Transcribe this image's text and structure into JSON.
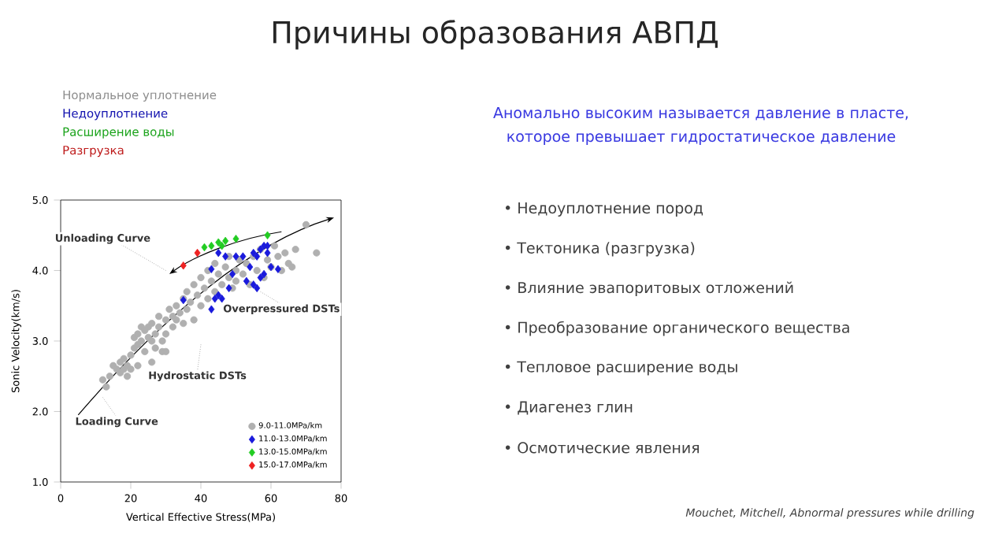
{
  "chart_data": {
    "type": "scatter",
    "title": "Причины образования АВПД",
    "xlabel": "Vertical Effective Stress(MPa)",
    "ylabel": "Sonic Velocity(km/s)",
    "xlim": [
      0,
      80
    ],
    "xticks": [
      0,
      20,
      40,
      60,
      80
    ],
    "ylim": [
      1.0,
      5.0
    ],
    "yticks": [
      {
        "value": 1.0,
        "label": "1.0"
      },
      {
        "value": 2.0,
        "label": "2.0"
      },
      {
        "value": 3.0,
        "label": "3.0"
      },
      {
        "value": 4.0,
        "label": "4.0"
      },
      {
        "value": 5.0,
        "label": "5.0"
      }
    ],
    "grid": false,
    "legend": "bottom right",
    "series": [
      {
        "name": "9.0-11.0MPa/km",
        "color": "#b0b0b0",
        "marker": "circle",
        "x": [
          12,
          13,
          14,
          15,
          16,
          17,
          17,
          18,
          18,
          19,
          19,
          20,
          20,
          21,
          21,
          22,
          22,
          23,
          23,
          24,
          24,
          25,
          25,
          26,
          26,
          27,
          27,
          28,
          28,
          29,
          30,
          30,
          31,
          32,
          32,
          33,
          33,
          34,
          35,
          35,
          36,
          36,
          37,
          38,
          38,
          39,
          40,
          40,
          41,
          42,
          42,
          43,
          44,
          44,
          45,
          46,
          47,
          48,
          48,
          49,
          50,
          50,
          51,
          52,
          53,
          54,
          55,
          56,
          57,
          58,
          59,
          60,
          61,
          62,
          63,
          64,
          65,
          66,
          67,
          70,
          73,
          29,
          26,
          22,
          30
        ],
        "values": [
          2.45,
          2.35,
          2.5,
          2.65,
          2.6,
          2.7,
          2.55,
          2.6,
          2.75,
          2.5,
          2.65,
          2.8,
          2.6,
          2.9,
          3.05,
          2.95,
          3.1,
          3.2,
          3.0,
          3.15,
          2.85,
          3.05,
          3.2,
          3.25,
          3.0,
          3.1,
          2.9,
          3.2,
          3.35,
          3.0,
          3.1,
          3.3,
          3.45,
          3.35,
          3.2,
          3.5,
          3.3,
          3.4,
          3.6,
          3.25,
          3.7,
          3.45,
          3.55,
          3.8,
          3.3,
          3.65,
          3.9,
          3.5,
          3.75,
          3.6,
          4.0,
          3.85,
          4.1,
          3.7,
          3.95,
          3.8,
          4.05,
          3.9,
          4.2,
          3.75,
          4.0,
          3.85,
          4.15,
          3.95,
          4.1,
          3.8,
          4.2,
          4.0,
          4.3,
          3.9,
          4.15,
          4.05,
          4.35,
          4.2,
          4.0,
          4.25,
          4.1,
          4.05,
          4.3,
          4.65,
          4.25,
          2.85,
          2.7,
          2.65,
          2.85
        ]
      },
      {
        "name": "11.0-13.0MPa/km",
        "color": "#1a1adc",
        "marker": "diamond",
        "x": [
          35,
          43,
          44,
          45,
          46,
          43,
          45,
          47,
          50,
          52,
          55,
          57,
          58,
          59,
          56,
          59,
          49,
          48,
          53,
          54,
          55,
          57,
          58,
          62,
          60,
          56
        ],
        "values": [
          3.58,
          3.45,
          3.6,
          3.65,
          3.6,
          4.02,
          4.25,
          4.2,
          4.2,
          4.2,
          4.25,
          4.3,
          4.35,
          4.35,
          4.2,
          4.25,
          3.95,
          3.75,
          3.85,
          4.05,
          3.8,
          3.9,
          3.95,
          4.02,
          4.05,
          3.75
        ]
      },
      {
        "name": "13.0-15.0MPa/km",
        "color": "#22cc22",
        "marker": "diamond",
        "x": [
          41,
          43,
          45,
          46,
          47,
          50,
          59
        ],
        "values": [
          4.33,
          4.35,
          4.4,
          4.35,
          4.42,
          4.45,
          4.5
        ]
      },
      {
        "name": "15.0-17.0MPa/km",
        "color": "#ee2222",
        "marker": "diamond",
        "x": [
          35,
          39
        ],
        "values": [
          4.07,
          4.25
        ]
      }
    ],
    "annotations": [
      "Нормальное уплотнение",
      "Недоуплотнение",
      "Расширение воды",
      "Разгрузка",
      "Аномально высоким называется давление в пласте, которое превышает гидростатическое давление",
      "•   Недоуплотнение пород",
      "•   Тектоника (разгрузка)",
      "•   Влияние эвапоритовых отложений",
      "•   Преобразование органического вещества",
      "•   Тепловое расширение воды",
      "•   Диагенез глин",
      "•   Осмотические явления",
      "Mouchet, Mitchell, Abnormal pressures while drilling",
      "Unloading Curve",
      "Overpressured DSTs",
      "Hydrostatic DSTs",
      "Loading Curve"
    ]
  }
}
